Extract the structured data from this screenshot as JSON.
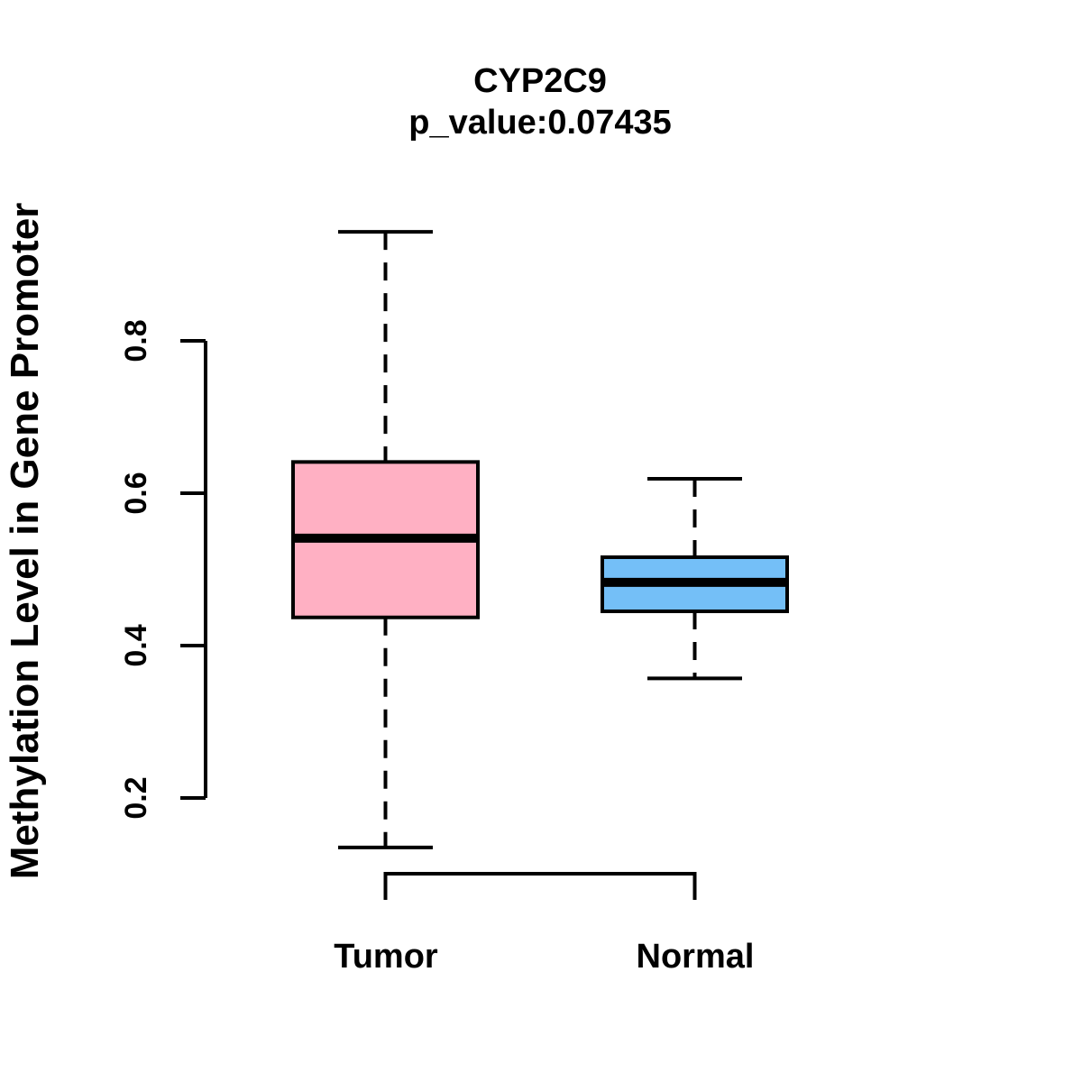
{
  "chart_data": {
    "type": "boxplot",
    "title": "CYP2C9",
    "subtitle": "p_value:0.07435",
    "ylabel": "Methylation Level in Gene Promoter",
    "xlabel": "",
    "categories": [
      "Tumor",
      "Normal"
    ],
    "yticks": [
      0.2,
      0.4,
      0.6,
      0.8
    ],
    "ytick_labels": [
      "0.2",
      "0.4",
      "0.6",
      "0.8"
    ],
    "axis_tick_range": [
      0.2,
      0.8
    ],
    "grid": false,
    "legend": "none",
    "boxes": [
      {
        "name": "Tumor",
        "fill": "#FFB0C3",
        "whisker_low": 0.135,
        "q1": 0.437,
        "median": 0.541,
        "q3": 0.641,
        "whisker_high": 0.943,
        "outliers": []
      },
      {
        "name": "Normal",
        "fill": "#74BFF7",
        "whisker_low": 0.357,
        "q1": 0.445,
        "median": 0.483,
        "q3": 0.516,
        "whisker_high": 0.619,
        "outliers": []
      }
    ],
    "colors": {
      "stroke": "#000000",
      "background": "#FFFFFF",
      "tumor_fill": "#FFB0C3",
      "normal_fill": "#74BFF7"
    }
  }
}
